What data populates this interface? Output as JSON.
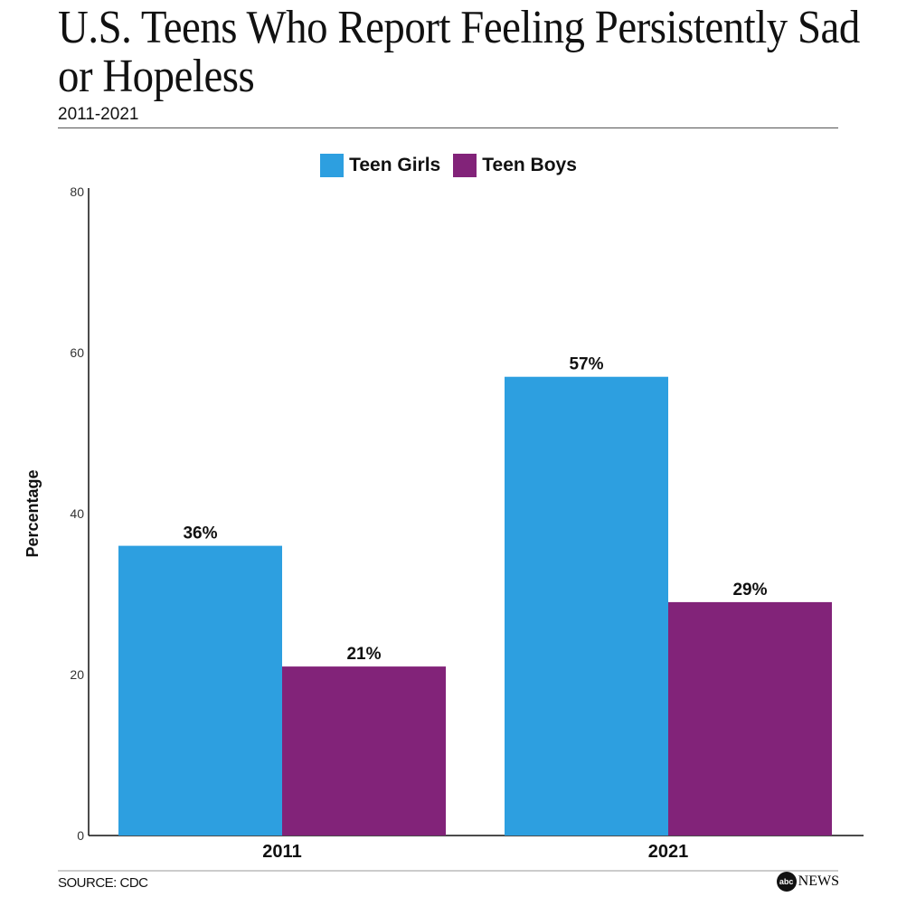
{
  "header": {
    "title": "U.S. Teens Who Report Feeling Persistently Sad or Hopeless",
    "subtitle": "2011-2021"
  },
  "footer": {
    "source": "SOURCE: CDC",
    "logo": "abc NEWS"
  },
  "chart_data": {
    "type": "bar",
    "categories": [
      "2011",
      "2021"
    ],
    "series": [
      {
        "name": "Teen Girls",
        "values": [
          36,
          57
        ],
        "labels": [
          "36%",
          "57%"
        ],
        "color": "#2D9FE0"
      },
      {
        "name": "Teen Boys",
        "values": [
          21,
          29
        ],
        "labels": [
          "21%",
          "29%"
        ],
        "color": "#822379"
      }
    ],
    "ylabel": "Percentage",
    "ylim": [
      0,
      80
    ],
    "yticks": [
      "0",
      "20",
      "40",
      "60",
      "80"
    ],
    "grid": false,
    "legend": "top-center"
  }
}
